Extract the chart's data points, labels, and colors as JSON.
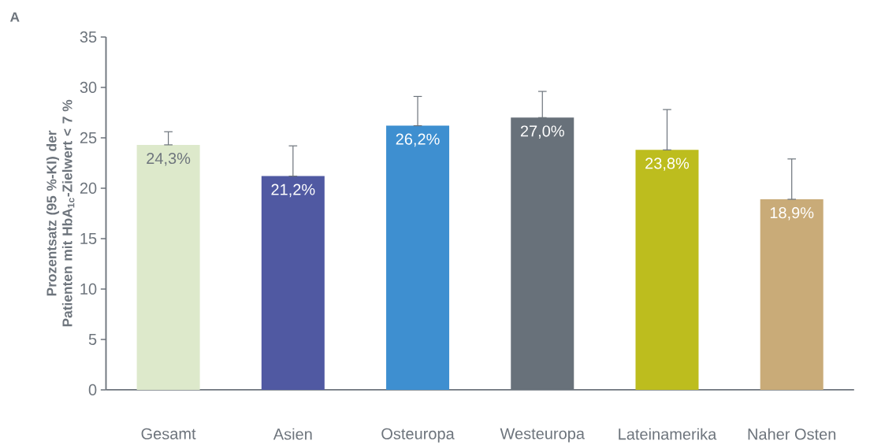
{
  "chart_data": {
    "type": "bar",
    "title": "A",
    "ylabel": "Prozentsatz (95 %-KI) der Patienten mit HbA$_{1c}$-Zielwert < 7 %",
    "categories": [
      "Gesamt",
      "Asien",
      "Osteuropa",
      "Westeuropa",
      "Lateinamerika",
      "Naher Osten"
    ],
    "values": [
      24.3,
      21.2,
      26.2,
      27.0,
      23.8,
      18.9
    ],
    "colors": [
      "#dde9cb",
      "#5059a2",
      "#3e8fd0",
      "#68717a",
      "#bdbd1e",
      "#c9ab78"
    ],
    "errors": [
      [
        24.3,
        25.6
      ],
      [
        21.2,
        24.2
      ],
      [
        26.2,
        29.1
      ],
      [
        27.0,
        29.6
      ],
      [
        23.8,
        27.8
      ],
      [
        18.9,
        22.9
      ]
    ],
    "value_labels": [
      "24,3%",
      "21,2%",
      "26,2%",
      "27,0%",
      "23,8%",
      "18,9%"
    ],
    "ylim": [
      0,
      35
    ],
    "yticks": [
      0,
      5,
      10,
      15,
      20,
      25,
      30,
      35
    ],
    "grid": false
  }
}
